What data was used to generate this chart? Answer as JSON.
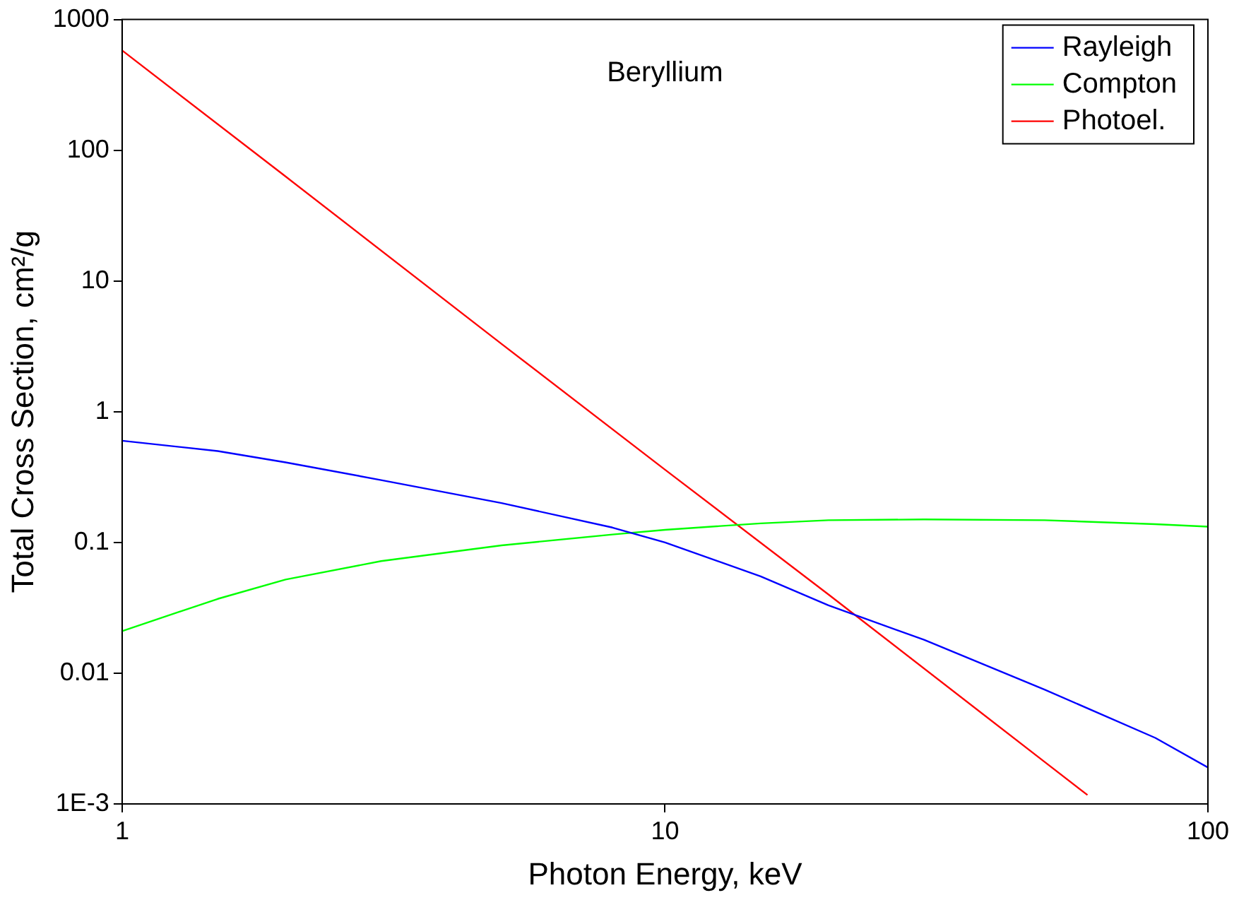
{
  "chart_data": {
    "type": "line",
    "xlabel": "Photon Energy, keV",
    "ylabel": "Total Cross Section, cm²/g",
    "annotations": [
      "Beryllium"
    ],
    "log": "xy",
    "grid": false,
    "legend": "top right",
    "marker": "none",
    "line_style": "solid",
    "xlim": [
      1,
      100
    ],
    "xticks": [
      1,
      10,
      100
    ],
    "ylim": [
      0.001,
      1000
    ],
    "yticks": [
      {
        "value": 0.001,
        "label": "1E-3"
      },
      0.01,
      0.1,
      1,
      10,
      100,
      1000
    ],
    "series": [
      {
        "name": "Rayleigh",
        "color": "#0000ff",
        "x": [
          1,
          1.5,
          2,
          3,
          5,
          8,
          10,
          15,
          20,
          30,
          50,
          80,
          100
        ],
        "values": [
          0.6,
          0.5,
          0.41,
          0.3,
          0.2,
          0.13,
          0.1,
          0.055,
          0.033,
          0.018,
          0.0075,
          0.0032,
          0.0019
        ]
      },
      {
        "name": "Compton",
        "color": "#00ff00",
        "x": [
          1,
          1.5,
          2,
          3,
          5,
          8,
          10,
          15,
          20,
          30,
          50,
          80,
          100
        ],
        "values": [
          0.021,
          0.037,
          0.052,
          0.072,
          0.095,
          0.115,
          0.125,
          0.14,
          0.148,
          0.15,
          0.148,
          0.138,
          0.132
        ]
      },
      {
        "name": "Photoel.",
        "color": "#ff0000",
        "x": [
          1,
          2,
          5,
          10,
          20,
          50,
          60
        ],
        "values": [
          580,
          63,
          3.3,
          0.36,
          0.04,
          0.0021,
          0.00117
        ]
      }
    ]
  }
}
